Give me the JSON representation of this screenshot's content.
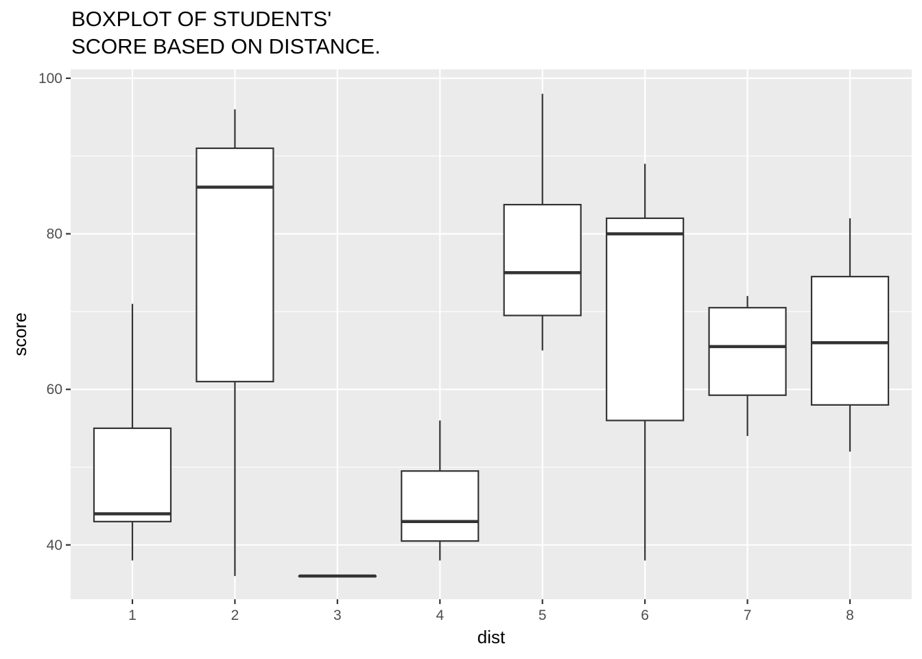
{
  "chart_data": {
    "type": "boxplot",
    "title": [
      "BOXPLOT OF STUDENTS'",
      "SCORE BASED ON DISTANCE."
    ],
    "xlabel": "dist",
    "ylabel": "score",
    "categories": [
      "1",
      "2",
      "3",
      "4",
      "5",
      "6",
      "7",
      "8"
    ],
    "ylim": [
      33,
      101
    ],
    "yticks": [
      40,
      60,
      80,
      100
    ],
    "grid": true,
    "legend": "none",
    "colors": {
      "panel_background": "#ebebeb",
      "grid": "#ffffff",
      "box_fill": "#ffffff",
      "box_stroke": "#333333",
      "tick_text": "#4d4d4d"
    },
    "boxes": [
      {
        "dist": "1",
        "min": 38,
        "q1": 43,
        "median": 44,
        "q3": 55,
        "max": 71
      },
      {
        "dist": "2",
        "min": 36,
        "q1": 61,
        "median": 86,
        "q3": 91,
        "max": 96
      },
      {
        "dist": "3",
        "min": 36,
        "q1": 36,
        "median": 36,
        "q3": 36,
        "max": 36
      },
      {
        "dist": "4",
        "min": 38,
        "q1": 40.5,
        "median": 43,
        "q3": 49.5,
        "max": 56
      },
      {
        "dist": "5",
        "min": 65,
        "q1": 69.5,
        "median": 75,
        "q3": 83.75,
        "max": 98
      },
      {
        "dist": "6",
        "min": 38,
        "q1": 56,
        "median": 80,
        "q3": 82,
        "max": 89
      },
      {
        "dist": "7",
        "min": 54,
        "q1": 59.25,
        "median": 65.5,
        "q3": 70.5,
        "max": 72
      },
      {
        "dist": "8",
        "min": 52,
        "q1": 58,
        "median": 66,
        "q3": 74.5,
        "max": 82
      }
    ]
  }
}
